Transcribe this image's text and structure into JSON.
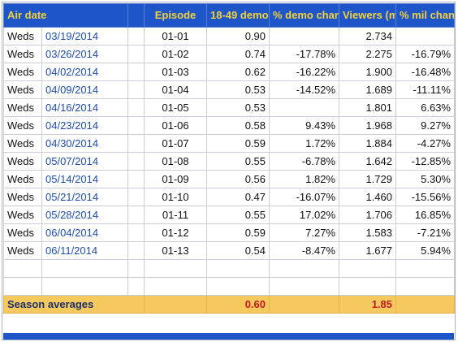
{
  "headers": {
    "air_date": "Air date",
    "episode": "Episode",
    "demo": "18-49 demo",
    "demo_change": "% demo change",
    "viewers": "Viewers (mil)",
    "mil_change": "% mil change"
  },
  "rows": [
    {
      "day": "Weds",
      "date": "03/19/2014",
      "episode": "01-01",
      "demo": "0.90",
      "demo_change": "",
      "viewers": "2.734",
      "mil_change": ""
    },
    {
      "day": "Weds",
      "date": "03/26/2014",
      "episode": "01-02",
      "demo": "0.74",
      "demo_change": "-17.78%",
      "viewers": "2.275",
      "mil_change": "-16.79%"
    },
    {
      "day": "Weds",
      "date": "04/02/2014",
      "episode": "01-03",
      "demo": "0.62",
      "demo_change": "-16.22%",
      "viewers": "1.900",
      "mil_change": "-16.48%"
    },
    {
      "day": "Weds",
      "date": "04/09/2014",
      "episode": "01-04",
      "demo": "0.53",
      "demo_change": "-14.52%",
      "viewers": "1.689",
      "mil_change": "-11.11%"
    },
    {
      "day": "Weds",
      "date": "04/16/2014",
      "episode": "01-05",
      "demo": "0.53",
      "demo_change": "",
      "viewers": "1.801",
      "mil_change": "6.63%"
    },
    {
      "day": "Weds",
      "date": "04/23/2014",
      "episode": "01-06",
      "demo": "0.58",
      "demo_change": "9.43%",
      "viewers": "1.968",
      "mil_change": "9.27%"
    },
    {
      "day": "Weds",
      "date": "04/30/2014",
      "episode": "01-07",
      "demo": "0.59",
      "demo_change": "1.72%",
      "viewers": "1.884",
      "mil_change": "-4.27%"
    },
    {
      "day": "Weds",
      "date": "05/07/2014",
      "episode": "01-08",
      "demo": "0.55",
      "demo_change": "-6.78%",
      "viewers": "1.642",
      "mil_change": "-12.85%"
    },
    {
      "day": "Weds",
      "date": "05/14/2014",
      "episode": "01-09",
      "demo": "0.56",
      "demo_change": "1.82%",
      "viewers": "1.729",
      "mil_change": "5.30%"
    },
    {
      "day": "Weds",
      "date": "05/21/2014",
      "episode": "01-10",
      "demo": "0.47",
      "demo_change": "-16.07%",
      "viewers": "1.460",
      "mil_change": "-15.56%"
    },
    {
      "day": "Weds",
      "date": "05/28/2014",
      "episode": "01-11",
      "demo": "0.55",
      "demo_change": "17.02%",
      "viewers": "1.706",
      "mil_change": "16.85%"
    },
    {
      "day": "Weds",
      "date": "06/04/2014",
      "episode": "01-12",
      "demo": "0.59",
      "demo_change": "7.27%",
      "viewers": "1.583",
      "mil_change": "-7.21%"
    },
    {
      "day": "Weds",
      "date": "06/11/2014",
      "episode": "01-13",
      "demo": "0.54",
      "demo_change": "-8.47%",
      "viewers": "1.677",
      "mil_change": "5.94%"
    }
  ],
  "averages": {
    "label": "Season averages",
    "demo": "0.60",
    "viewers": "1.85"
  },
  "colors": {
    "header_bg": "#1e56c9",
    "header_text": "#f4d23a",
    "link": "#1f4ea8",
    "average_bg": "#f6c95e",
    "average_value": "#c0181e"
  }
}
